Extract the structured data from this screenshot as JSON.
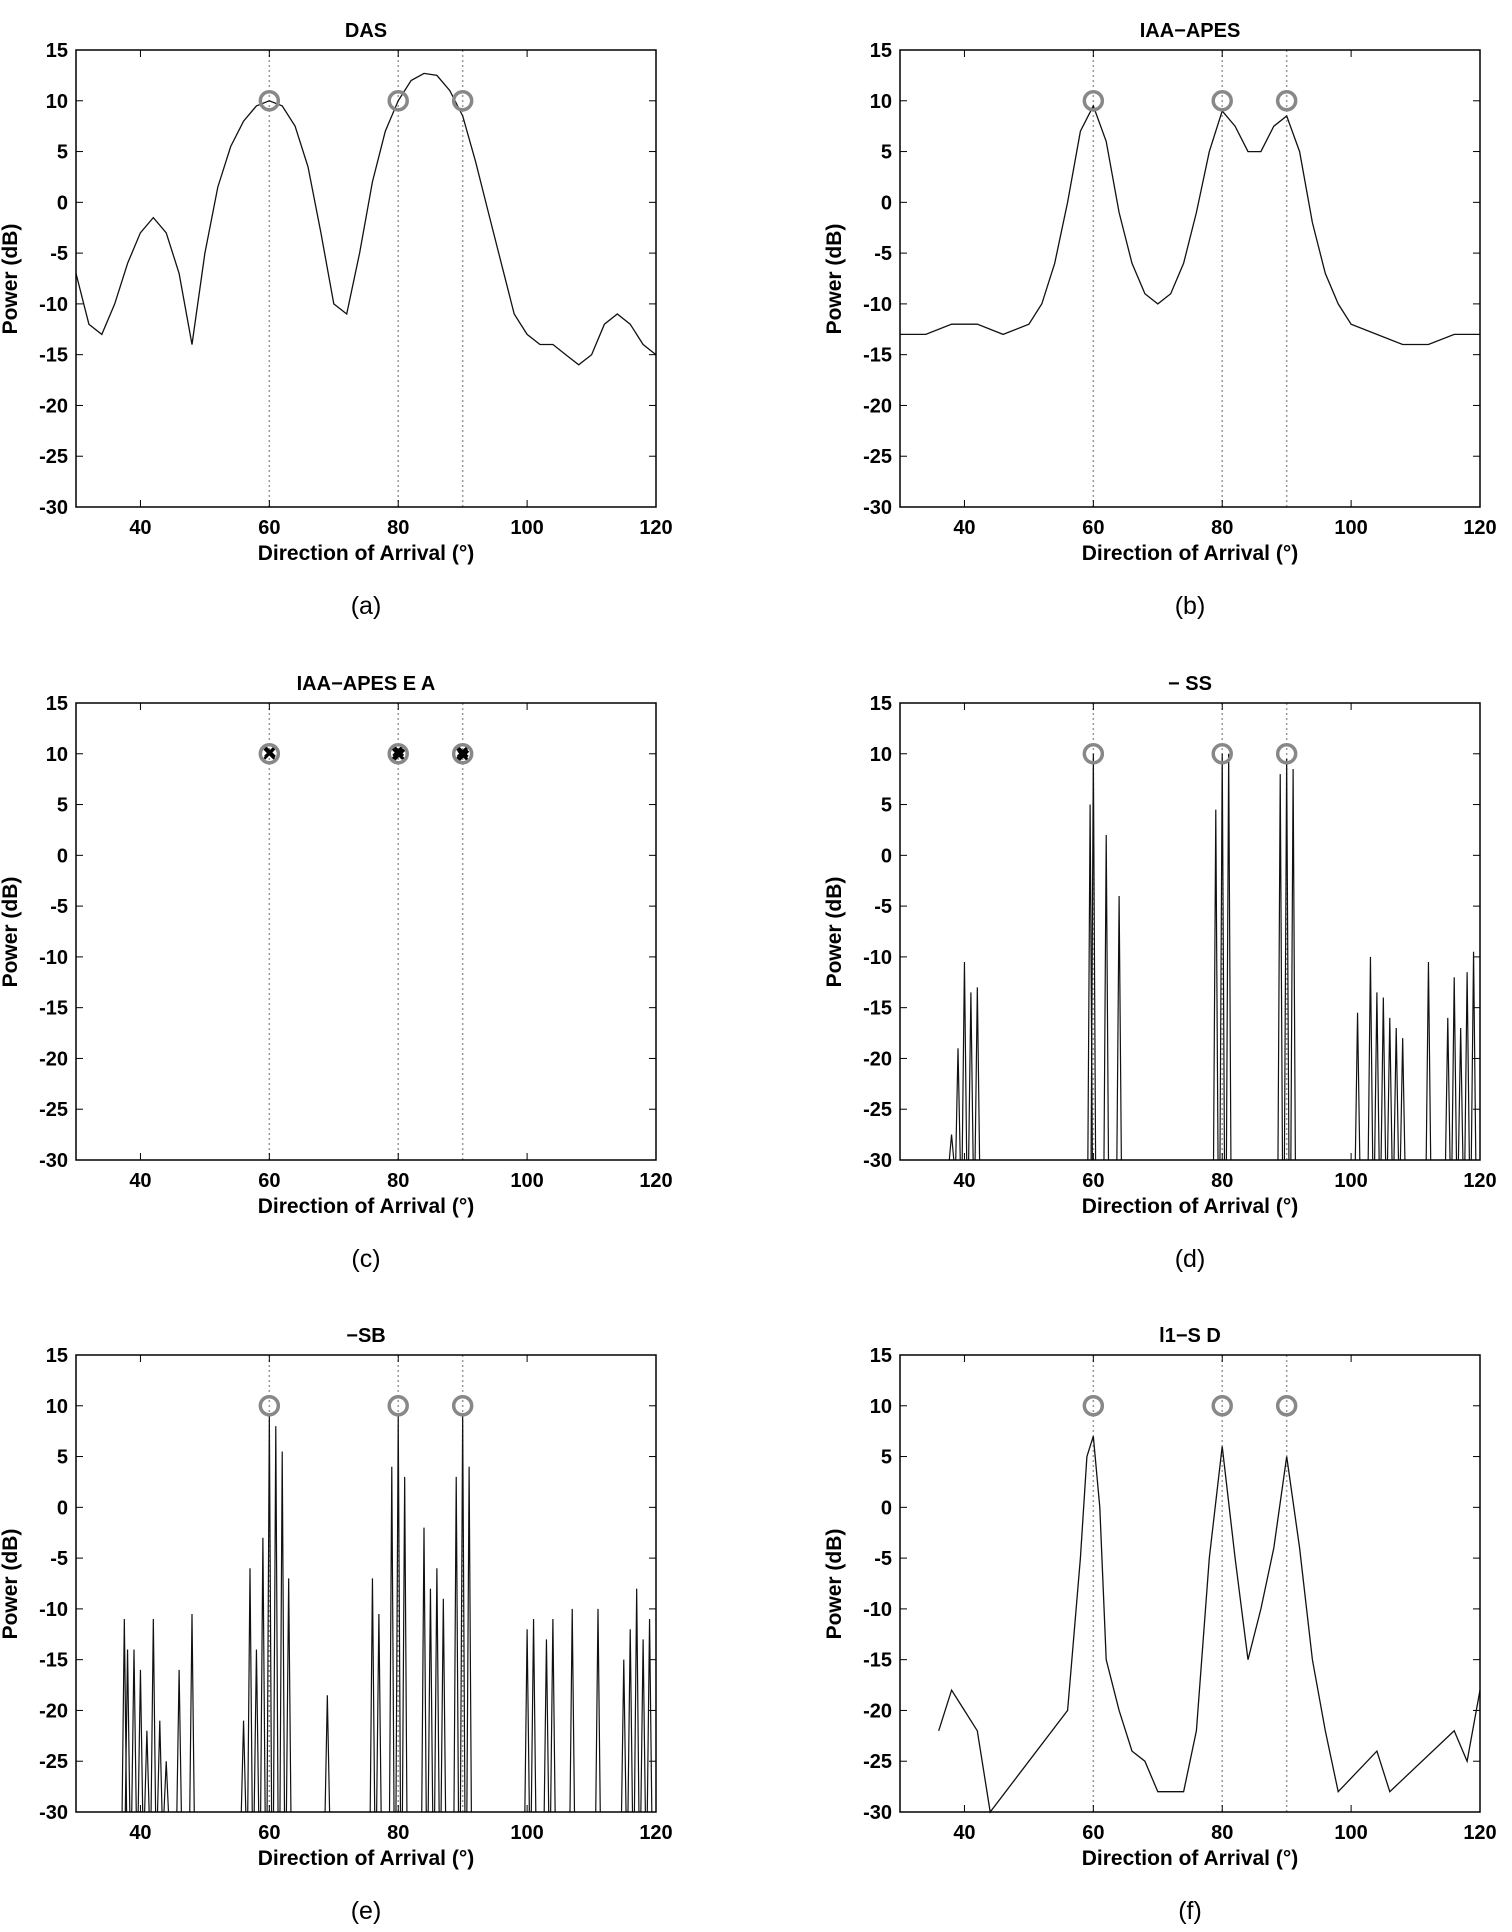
{
  "chart_data": [
    {
      "type": "line",
      "panel": "a",
      "title": "DAS",
      "caption": "(a)",
      "xlabel": "Direction of Arrival (°)",
      "ylabel": "Power (dB)",
      "xlim": [
        30,
        120
      ],
      "ylim": [
        -30,
        15
      ],
      "xticks": [
        40,
        60,
        80,
        100,
        120
      ],
      "yticks": [
        15,
        10,
        5,
        0,
        -5,
        -10,
        -15,
        -20,
        -25,
        -30
      ],
      "true_sources": {
        "x": [
          60,
          80,
          90
        ],
        "y": [
          10,
          10,
          10
        ]
      },
      "series": [
        {
          "x": [
            30,
            32,
            34,
            36,
            38,
            40,
            42,
            44,
            46,
            48,
            50,
            52,
            54,
            56,
            58,
            60,
            62,
            64,
            66,
            68,
            70,
            72,
            74,
            76,
            78,
            80,
            82,
            84,
            86,
            88,
            90,
            92,
            94,
            96,
            98,
            100,
            102,
            104,
            106,
            108,
            110,
            112,
            114,
            116,
            118,
            120
          ],
          "y": [
            -7,
            -12,
            -13,
            -10,
            -6,
            -3,
            -1.5,
            -3,
            -7,
            -14,
            -5,
            1.5,
            5.5,
            8,
            9.5,
            10,
            9.5,
            7.5,
            3.5,
            -3,
            -10,
            -11,
            -5,
            2,
            7,
            10,
            12,
            12.7,
            12.5,
            11,
            8.5,
            4,
            -1,
            -6,
            -11,
            -13,
            -14,
            -14,
            -15,
            -16,
            -15,
            -12,
            -11,
            -12,
            -14,
            -15
          ]
        }
      ]
    },
    {
      "type": "line",
      "panel": "b",
      "title": "IAA−APES",
      "caption": "(b)",
      "xlabel": "Direction of Arrival (°)",
      "ylabel": "Power (dB)",
      "xlim": [
        30,
        120
      ],
      "ylim": [
        -30,
        15
      ],
      "xticks": [
        40,
        60,
        80,
        100,
        120
      ],
      "yticks": [
        15,
        10,
        5,
        0,
        -5,
        -10,
        -15,
        -20,
        -25,
        -30
      ],
      "true_sources": {
        "x": [
          60,
          80,
          90
        ],
        "y": [
          10,
          10,
          10
        ]
      },
      "series": [
        {
          "x": [
            30,
            34,
            38,
            42,
            46,
            50,
            52,
            54,
            56,
            58,
            60,
            62,
            64,
            66,
            68,
            70,
            72,
            74,
            76,
            78,
            80,
            82,
            84,
            86,
            88,
            90,
            92,
            94,
            96,
            98,
            100,
            104,
            108,
            112,
            116,
            120
          ],
          "y": [
            -13,
            -13,
            -12,
            -12,
            -13,
            -12,
            -10,
            -6,
            0,
            7,
            9.5,
            6,
            -1,
            -6,
            -9,
            -10,
            -9,
            -6,
            -1,
            5,
            9,
            7.5,
            5,
            5,
            7.5,
            8.5,
            5,
            -2,
            -7,
            -10,
            -12,
            -13,
            -14,
            -14,
            -13,
            -13
          ]
        }
      ]
    },
    {
      "type": "scatter",
      "panel": "c",
      "title": "IAA−APES  E A",
      "caption": "(c)",
      "xlabel": "Direction of Arrival (°)",
      "ylabel": "Power (dB)",
      "xlim": [
        30,
        120
      ],
      "ylim": [
        -30,
        15
      ],
      "xticks": [
        40,
        60,
        80,
        100,
        120
      ],
      "yticks": [
        15,
        10,
        5,
        0,
        -5,
        -10,
        -15,
        -20,
        -25,
        -30
      ],
      "true_sources": {
        "x": [
          60,
          80,
          90
        ],
        "y": [
          10,
          10,
          10
        ]
      },
      "estimates": {
        "x": [
          60,
          60.1,
          79.9,
          80,
          80.2,
          89.9,
          90,
          90.1
        ],
        "y": [
          10,
          10.2,
          10,
          10.3,
          9.9,
          10,
          10.2,
          9.8
        ]
      }
    },
    {
      "type": "line",
      "panel": "d",
      "title": "−    SS",
      "caption": "(d)",
      "xlabel": "Direction of Arrival (°)",
      "ylabel": "Power (dB)",
      "xlim": [
        30,
        120
      ],
      "ylim": [
        -30,
        15
      ],
      "xticks": [
        40,
        60,
        80,
        100,
        120
      ],
      "yticks": [
        15,
        10,
        5,
        0,
        -5,
        -10,
        -15,
        -20,
        -25,
        -30
      ],
      "true_sources": {
        "x": [
          60,
          80,
          90
        ],
        "y": [
          10,
          10,
          10
        ]
      },
      "spikes": {
        "x": [
          38,
          39,
          40,
          41,
          42,
          59.5,
          60,
          62,
          64,
          79,
          80,
          81,
          89,
          90,
          91,
          101,
          103,
          104,
          105,
          106,
          107,
          108,
          112,
          115,
          116,
          117,
          118,
          119
        ],
        "y": [
          -27.5,
          -19,
          -10.5,
          -13.5,
          -13,
          5,
          10,
          2,
          -4,
          4.5,
          10,
          10,
          8,
          9.5,
          8.5,
          -15.5,
          -10,
          -13.5,
          -14,
          -16,
          -17,
          -18,
          -10.5,
          -16,
          -12,
          -17,
          -11.5,
          -9.5
        ]
      }
    },
    {
      "type": "line",
      "panel": "e",
      "title": "−SB",
      "caption": "(e)",
      "xlabel": "Direction of Arrival (°)",
      "ylabel": "Power (dB)",
      "xlim": [
        30,
        120
      ],
      "ylim": [
        -30,
        15
      ],
      "xticks": [
        40,
        60,
        80,
        100,
        120
      ],
      "yticks": [
        15,
        10,
        5,
        0,
        -5,
        -10,
        -15,
        -20,
        -25,
        -30
      ],
      "true_sources": {
        "x": [
          60,
          80,
          90
        ],
        "y": [
          10,
          10,
          10
        ]
      },
      "spikes": {
        "x": [
          37.5,
          38,
          39,
          40,
          41,
          42,
          43,
          44,
          46,
          48,
          56,
          57,
          58,
          59,
          60,
          61,
          62,
          63,
          69,
          76,
          77,
          79,
          80,
          81,
          84,
          85,
          86,
          87,
          89,
          90,
          91,
          100,
          101,
          103,
          104,
          107,
          111,
          115,
          116,
          117,
          118,
          119
        ],
        "y": [
          -11,
          -14,
          -14,
          -16,
          -22,
          -11,
          -21,
          -25,
          -16,
          -10.5,
          -21,
          -6,
          -14,
          -3,
          9,
          8,
          5.5,
          -7,
          -18.5,
          -7,
          -10.5,
          4,
          9,
          3,
          -2,
          -8,
          -6,
          -9,
          3,
          9,
          4,
          -12,
          -11,
          -13,
          -11,
          -10,
          -10,
          -15,
          -12,
          -8,
          -13,
          -11
        ]
      }
    },
    {
      "type": "line",
      "panel": "f",
      "title": "l1−S D",
      "caption": "(f)",
      "xlabel": "Direction of Arrival (°)",
      "ylabel": "Power (dB)",
      "xlim": [
        30,
        120
      ],
      "ylim": [
        -30,
        15
      ],
      "xticks": [
        40,
        60,
        80,
        100,
        120
      ],
      "yticks": [
        15,
        10,
        5,
        0,
        -5,
        -10,
        -15,
        -20,
        -25,
        -30
      ],
      "true_sources": {
        "x": [
          60,
          80,
          90
        ],
        "y": [
          10,
          10,
          10
        ]
      },
      "series": [
        {
          "x": [
            36,
            38,
            40,
            42,
            44,
            56,
            58,
            59,
            60,
            61,
            62,
            64,
            66,
            68,
            70,
            74,
            76,
            78,
            80,
            82,
            84,
            86,
            88,
            90,
            92,
            94,
            96,
            98,
            104,
            106,
            116,
            118,
            120
          ],
          "y": [
            -22,
            -18,
            -20,
            -22,
            -30,
            -20,
            -5,
            5,
            7,
            0,
            -15,
            -20,
            -24,
            -25,
            -28,
            -28,
            -22,
            -5,
            6,
            -5,
            -15,
            -10,
            -4,
            5,
            -4,
            -15,
            -22,
            -28,
            -24,
            -28,
            -22,
            -25,
            -18
          ]
        }
      ]
    }
  ]
}
